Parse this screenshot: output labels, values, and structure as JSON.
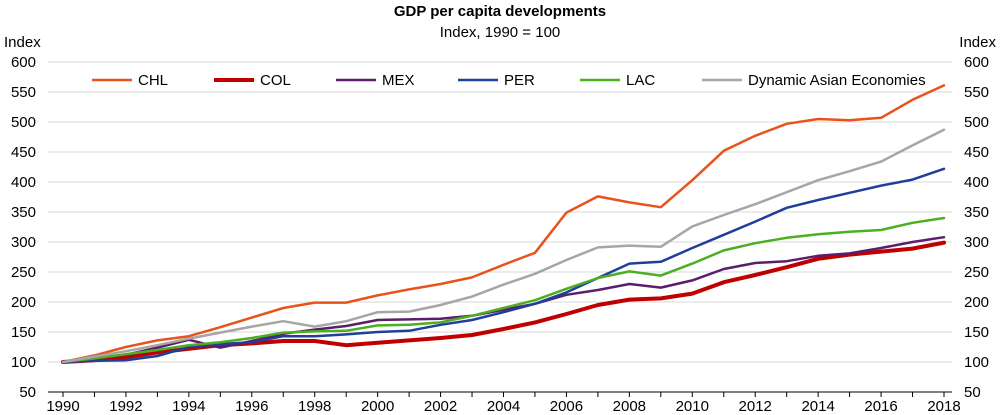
{
  "chart_data": {
    "type": "line",
    "title": "GDP per capita developments",
    "subtitle": "Index, 1990 = 100",
    "ylabel_left": "Index",
    "ylabel_right": "Index",
    "ylim": [
      50,
      600
    ],
    "yticks": [
      50,
      100,
      150,
      200,
      250,
      300,
      350,
      400,
      450,
      500,
      550,
      600
    ],
    "xlim": [
      1990,
      2018
    ],
    "xticks": [
      1990,
      1992,
      1994,
      1996,
      1998,
      2000,
      2002,
      2004,
      2006,
      2008,
      2010,
      2012,
      2014,
      2016,
      2018
    ],
    "grid": true,
    "legend_position": "top",
    "x": [
      1990,
      1991,
      1992,
      1993,
      1994,
      1995,
      1996,
      1997,
      1998,
      1999,
      2000,
      2001,
      2002,
      2003,
      2004,
      2005,
      2006,
      2007,
      2008,
      2009,
      2010,
      2011,
      2012,
      2013,
      2014,
      2015,
      2016,
      2017,
      2018
    ],
    "series": [
      {
        "name": "CHL",
        "color": "#e8531c",
        "width": 2.5,
        "values": [
          100,
          111,
          125,
          136,
          143,
          158,
          174,
          190,
          199,
          199,
          211,
          221,
          230,
          241,
          262,
          282,
          349,
          376,
          366,
          358,
          403,
          452,
          477,
          497,
          505,
          503,
          507,
          537,
          561
        ]
      },
      {
        "name": "COL",
        "color": "#c00000",
        "width": 4,
        "values": [
          100,
          103,
          108,
          116,
          122,
          128,
          131,
          135,
          135,
          128,
          132,
          136,
          140,
          145,
          155,
          166,
          180,
          195,
          204,
          206,
          214,
          233,
          245,
          258,
          272,
          279,
          284,
          289,
          299
        ]
      },
      {
        "name": "MEX",
        "color": "#5b1e6b",
        "width": 2.5,
        "values": [
          100,
          106,
          112,
          124,
          137,
          124,
          135,
          147,
          154,
          160,
          170,
          171,
          172,
          177,
          187,
          197,
          212,
          220,
          230,
          224,
          236,
          255,
          265,
          268,
          277,
          281,
          290,
          300,
          308
        ]
      },
      {
        "name": "PER",
        "color": "#1f3f9a",
        "width": 2.5,
        "values": [
          100,
          102,
          103,
          110,
          125,
          130,
          133,
          143,
          143,
          146,
          150,
          152,
          162,
          170,
          183,
          197,
          216,
          240,
          264,
          267,
          290,
          312,
          334,
          357,
          370,
          382,
          394,
          404,
          422
        ]
      },
      {
        "name": "LAC",
        "color": "#4caf22",
        "width": 2.5,
        "values": [
          100,
          106,
          113,
          120,
          128,
          133,
          140,
          149,
          151,
          152,
          161,
          162,
          166,
          177,
          190,
          203,
          222,
          240,
          251,
          244,
          264,
          286,
          298,
          307,
          313,
          317,
          320,
          332,
          340
        ]
      },
      {
        "name": "Dynamic Asian Economies",
        "color": "#a6a6a6",
        "width": 2.5,
        "values": [
          100,
          109,
          118,
          128,
          139,
          149,
          159,
          168,
          159,
          168,
          183,
          184,
          195,
          209,
          229,
          247,
          270,
          291,
          294,
          292,
          326,
          345,
          363,
          383,
          403,
          418,
          434,
          461,
          487
        ]
      }
    ]
  }
}
